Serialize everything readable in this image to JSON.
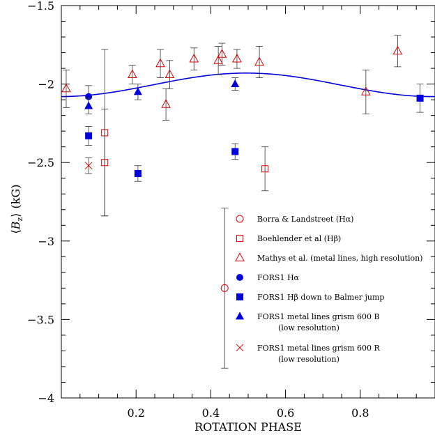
{
  "chart_data": {
    "type": "scatter",
    "xlabel": "ROTATION PHASE",
    "ylabel_parts": {
      "open": "⟨",
      "var": "B",
      "sub": "z",
      "close": "⟩",
      "unit": "(kG)"
    },
    "xlim": [
      0,
      1
    ],
    "ylim": [
      -4,
      -1.5
    ],
    "xticks": [
      {
        "v": 0.2,
        "t": "0.2"
      },
      {
        "v": 0.4,
        "t": "0.4"
      },
      {
        "v": 0.6,
        "t": "0.6"
      },
      {
        "v": 0.8,
        "t": "0.8"
      }
    ],
    "yticks": [
      {
        "v": -1.5,
        "t": "−1.5"
      },
      {
        "v": -2,
        "t": "−2"
      },
      {
        "v": -2.5,
        "t": "−2.5"
      },
      {
        "v": -3,
        "t": "−3"
      },
      {
        "v": -3.5,
        "t": "−3.5"
      },
      {
        "v": -4,
        "t": "−4"
      }
    ],
    "fit_curve": {
      "mean": -2.005,
      "amplitude": 0.075,
      "phase_max": 0.495,
      "color": "#0000dd"
    },
    "series": [
      {
        "name": "Borra & Landstreet (Hα)",
        "marker": "circle-open",
        "color": "#dd0000",
        "points": [
          {
            "x": 0.437,
            "y": -3.3,
            "e": 0.51
          }
        ]
      },
      {
        "name": "Boehlender et al (Hβ)",
        "marker": "square-open",
        "color": "#dd0000",
        "points": [
          {
            "x": 0.116,
            "y": -2.31,
            "e": 0.53
          },
          {
            "x": 0.116,
            "y": -2.5,
            "e": 0.34
          },
          {
            "x": 0.545,
            "y": -2.54,
            "e": 0.14
          }
        ]
      },
      {
        "name": "Mathys et al. (metal lines, high resolution)",
        "marker": "triangle-open",
        "color": "#dd0000",
        "points": [
          {
            "x": 0.013,
            "y": -2.03,
            "e": 0.12
          },
          {
            "x": 0.19,
            "y": -1.94,
            "e": 0.06
          },
          {
            "x": 0.265,
            "y": -1.87,
            "e": 0.09
          },
          {
            "x": 0.28,
            "y": -2.13,
            "e": 0.1
          },
          {
            "x": 0.29,
            "y": -1.94,
            "e": 0.09
          },
          {
            "x": 0.355,
            "y": -1.84,
            "e": 0.07
          },
          {
            "x": 0.42,
            "y": -1.85,
            "e": 0.09
          },
          {
            "x": 0.43,
            "y": -1.81,
            "e": 0.07
          },
          {
            "x": 0.47,
            "y": -1.84,
            "e": 0.06
          },
          {
            "x": 0.53,
            "y": -1.86,
            "e": 0.1
          },
          {
            "x": 0.815,
            "y": -2.05,
            "e": 0.14
          },
          {
            "x": 0.9,
            "y": -1.79,
            "e": 0.1
          }
        ]
      },
      {
        "name": "FORS1 Hα",
        "marker": "circle-filled",
        "color": "#0000dd",
        "points": [
          {
            "x": 0.073,
            "y": -2.08,
            "e": 0.07
          }
        ]
      },
      {
        "name": "FORS1 Hβ down to Balmer jump",
        "marker": "square-filled",
        "color": "#0000dd",
        "points": [
          {
            "x": 0.073,
            "y": -2.33,
            "e": 0.06
          },
          {
            "x": 0.205,
            "y": -2.57,
            "e": 0.05
          },
          {
            "x": 0.465,
            "y": -2.43,
            "e": 0.05
          },
          {
            "x": 0.96,
            "y": -2.09,
            "e": 0.09
          }
        ]
      },
      {
        "name": "FORS1 metal lines grism 600 B",
        "name2": "(low resolution)",
        "marker": "triangle-filled",
        "color": "#0000dd",
        "points": [
          {
            "x": 0.073,
            "y": -2.14,
            "e": 0.05
          },
          {
            "x": 0.205,
            "y": -2.05,
            "e": 0.05
          },
          {
            "x": 0.465,
            "y": -2.0,
            "e": 0.04
          }
        ]
      },
      {
        "name": "FORS1 metal lines grism 600 R",
        "name2": "(low resolution)",
        "marker": "x",
        "color": "#dd0000",
        "points": [
          {
            "x": 0.073,
            "y": -2.52,
            "e": 0.05
          }
        ]
      }
    ],
    "legend": "lower-right"
  }
}
